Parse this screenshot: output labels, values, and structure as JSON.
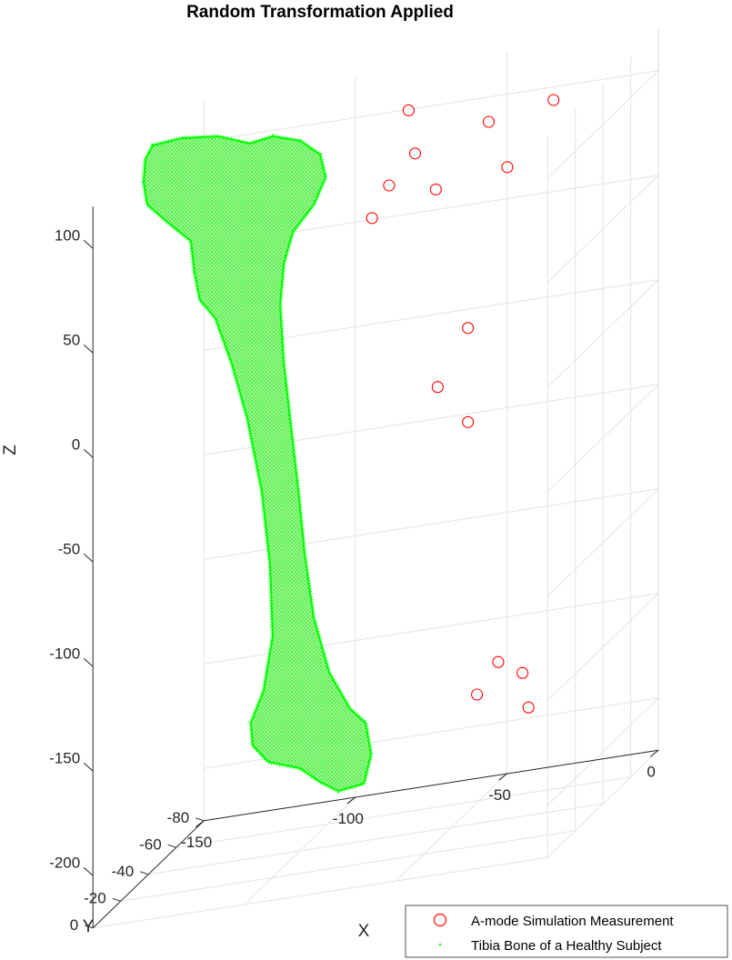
{
  "chart_data": {
    "type": "scatter",
    "title": "Random Transformation Applied",
    "xlabel": "X",
    "ylabel": "Y",
    "zlabel": "Z",
    "xlim": [
      -150,
      0
    ],
    "ylim": [
      -80,
      0
    ],
    "zlim": [
      -225,
      120
    ],
    "x_ticks": [
      "-150",
      "-100",
      "-50",
      "0"
    ],
    "y_ticks": [
      "0",
      "-20",
      "-40",
      "-60",
      "-80"
    ],
    "z_ticks": [
      "100",
      "50",
      "0",
      "-50",
      "-100",
      "-150",
      "-200"
    ],
    "grid": true,
    "legend_position": "bottom-right",
    "series": [
      {
        "name": "A-mode Simulation Measurement",
        "marker": "circle",
        "color": "#ff0000",
        "points": [
          {
            "x": -71,
            "y": -55,
            "z": 113
          },
          {
            "x": -40,
            "y": -45,
            "z": 107
          },
          {
            "x": -20,
            "y": -48,
            "z": 111
          },
          {
            "x": -62,
            "y": -40,
            "z": 100
          },
          {
            "x": -66,
            "y": -30,
            "z": 92
          },
          {
            "x": -46,
            "y": -20,
            "z": 92
          },
          {
            "x": -27,
            "y": -30,
            "z": 92
          },
          {
            "x": -68,
            "y": -22,
            "z": 82
          },
          {
            "x": -40,
            "y": -30,
            "z": 18
          },
          {
            "x": -50,
            "y": -30,
            "z": -8
          },
          {
            "x": -40,
            "y": -30,
            "z": -27
          },
          {
            "x": -30,
            "y": -30,
            "z": -144
          },
          {
            "x": -22,
            "y": -30,
            "z": -151
          },
          {
            "x": -37,
            "y": -30,
            "z": -158
          },
          {
            "x": -20,
            "y": -30,
            "z": -168
          }
        ]
      },
      {
        "name": "Tibia Bone of a Healthy Subject",
        "marker": "dot",
        "color": "#00ff00"
      }
    ]
  }
}
